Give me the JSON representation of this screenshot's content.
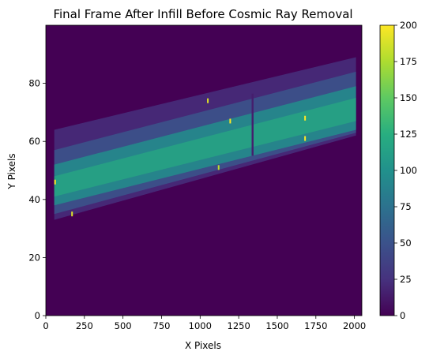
{
  "chart_data": {
    "type": "heatmap",
    "title": "Final Frame After Infill Before Cosmic Ray Removal",
    "xlabel": "X Pixels",
    "ylabel": "Y Pixels",
    "xlim": [
      0,
      2048
    ],
    "ylim": [
      0,
      100
    ],
    "x_ticks": [
      0,
      250,
      500,
      750,
      1000,
      1250,
      1500,
      1750,
      2000
    ],
    "y_ticks": [
      0,
      20,
      40,
      60,
      80
    ],
    "colormap": "viridis",
    "colorbar": {
      "min": 0,
      "max": 200,
      "ticks": [
        0,
        25,
        50,
        75,
        100,
        125,
        150,
        175,
        200
      ]
    },
    "background_value": 0,
    "spectral_trace": {
      "x_start": 55,
      "x_end": 2010,
      "lower_edge_y": [
        [
          55,
          33
        ],
        [
          2010,
          62
        ]
      ],
      "upper_edge_y": [
        [
          55,
          64
        ],
        [
          2010,
          89
        ]
      ],
      "bright_band_lower_y": [
        [
          55,
          38
        ],
        [
          2010,
          64
        ]
      ],
      "bright_band_upper_y": [
        [
          55,
          52
        ],
        [
          2010,
          79
        ]
      ],
      "edge_value": 20,
      "band_peak_value": 120,
      "gap_column_x": 1340
    },
    "hot_pixels": [
      {
        "x": 60,
        "y": 46,
        "value": 200
      },
      {
        "x": 170,
        "y": 35,
        "value": 190
      },
      {
        "x": 1050,
        "y": 74,
        "value": 190
      },
      {
        "x": 1195,
        "y": 67,
        "value": 200
      },
      {
        "x": 1680,
        "y": 68,
        "value": 200
      },
      {
        "x": 1680,
        "y": 61,
        "value": 200
      },
      {
        "x": 1120,
        "y": 51,
        "value": 180
      }
    ]
  }
}
